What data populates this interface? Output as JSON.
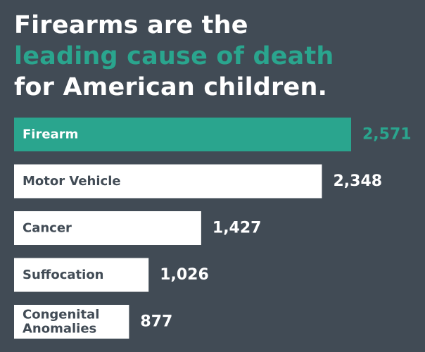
{
  "colors": {
    "background": "#414b55",
    "accent": "#2aa58e",
    "bar_default": "#ffffff",
    "label_on_accent": "#ffffff",
    "label_on_default": "#414b55",
    "value_default": "#ffffff"
  },
  "chart_data": {
    "type": "bar",
    "orientation": "horizontal",
    "title_lines": [
      "Firearms are the",
      "leading cause of death",
      "for American children."
    ],
    "categories": [
      [
        "Firearm"
      ],
      [
        "Motor Vehicle"
      ],
      [
        "Cancer"
      ],
      [
        "Suffocation"
      ],
      [
        "Congenital",
        "Anomalies"
      ]
    ],
    "values": [
      2571,
      2348,
      1427,
      1026,
      877
    ],
    "value_labels": [
      "2,571",
      "2,348",
      "1,427",
      "1,026",
      "877"
    ],
    "highlight_index": 0,
    "xlim": [
      0,
      2571
    ],
    "grid": false,
    "legend": "none"
  }
}
